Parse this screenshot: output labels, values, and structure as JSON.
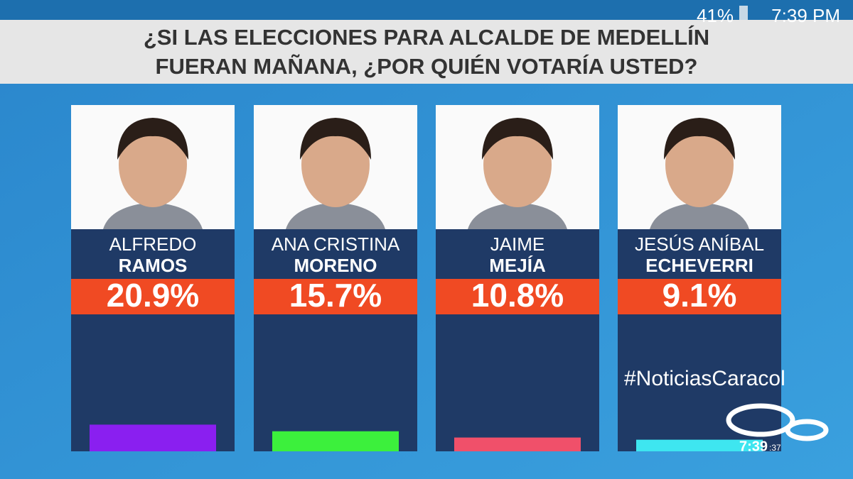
{
  "chart_data": {
    "type": "bar",
    "title": [
      "¿SI LAS ELECCIONES PARA ALCALDE DE MEDELLÍN",
      "FUERAN MAÑANA, ¿POR QUIÉN VOTARÍA USTED?"
    ],
    "categories": [
      [
        "ALFREDO",
        "RAMOS"
      ],
      [
        "ANA CRISTINA",
        "MORENO"
      ],
      [
        "JAIME",
        "MEJÍA"
      ],
      [
        "JESÚS ANÍBAL",
        "ECHEVERRI"
      ]
    ],
    "values": [
      20.9,
      15.7,
      10.8,
      9.1
    ],
    "value_labels": [
      "20.9%",
      "15.7%",
      "10.8%",
      "9.1%"
    ],
    "colors": [
      "#8a1ff0",
      "#3cf03c",
      "#f0506a",
      "#3ee6f0"
    ]
  },
  "status_bar": {
    "battery": "41%",
    "time": "7:39 PM"
  },
  "overlay": {
    "hashtag": "#NoticiasCaracol",
    "clock": "7:39",
    "seconds": ":37"
  }
}
